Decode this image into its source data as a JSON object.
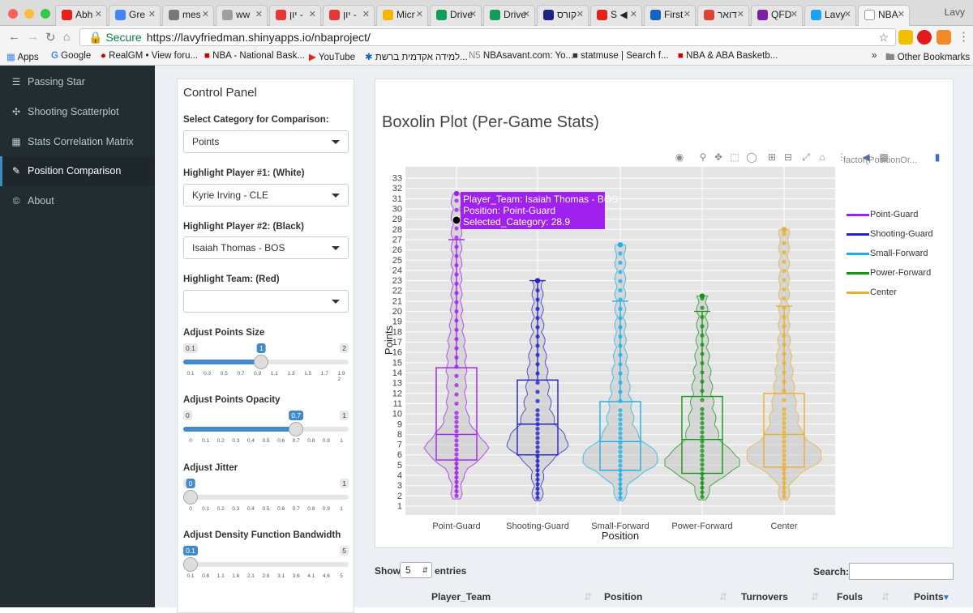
{
  "browser": {
    "tabs": [
      {
        "label": "Abh",
        "color": "#e62117"
      },
      {
        "label": "Gre",
        "color": "#4285f4"
      },
      {
        "label": "mes",
        "color": "#777777"
      },
      {
        "label": "ww",
        "color": "#9e9e9e"
      },
      {
        "label": "יון -",
        "color": "#e53935"
      },
      {
        "label": "יון -",
        "color": "#e53935"
      },
      {
        "label": "Micr",
        "color": "#f4b400"
      },
      {
        "label": "Drive",
        "color": "#0f9d58"
      },
      {
        "label": "Drive",
        "color": "#0f9d58"
      },
      {
        "label": "קורס",
        "color": "#1a237e"
      },
      {
        "label": "S ◀",
        "color": "#e62117"
      },
      {
        "label": "First",
        "color": "#1565c0"
      },
      {
        "label": "דואר",
        "color": "#db4437"
      },
      {
        "label": "QFD",
        "color": "#7b1fa2"
      },
      {
        "label": "Lavy",
        "color": "#1da1f2"
      },
      {
        "label": "NBA",
        "color": "#ffffff"
      }
    ],
    "user": "Lavy",
    "secure_label": "Secure",
    "url": "https://lavyfriedman.shinyapps.io/nbaproject/",
    "bookmarks": [
      "Apps",
      "Google",
      "RealGM • View foru...",
      "NBA - National Bask...",
      "YouTube",
      "למידה אקדמית ברשת...",
      "NBAsavant.com: Yo...",
      "statmuse | Search f...",
      "NBA & ABA Basketb..."
    ],
    "other_bookmarks": "Other Bookmarks",
    "overflow": "»"
  },
  "sidebar": {
    "items": [
      {
        "label": "Passing Star",
        "icon": "database-icon"
      },
      {
        "label": "Shooting Scatterplot",
        "icon": "crosshair-icon"
      },
      {
        "label": "Stats Correlation Matrix",
        "icon": "grid-icon"
      },
      {
        "label": "Position Comparison",
        "icon": "pencil-icon"
      },
      {
        "label": "About",
        "icon": "copyright-icon"
      }
    ]
  },
  "control_panel": {
    "title": "Control Panel",
    "category_label": "Select Category for Comparison:",
    "category_value": "Points",
    "player1_label": "Highlight Player #1: (White)",
    "player1_value": "Kyrie Irving - CLE",
    "player2_label": "Highlight Player #2: (Black)",
    "player2_value": "Isaiah Thomas - BOS",
    "team_label": "Highlight Team: (Red)",
    "team_value": "",
    "sliders": [
      {
        "label": "Adjust Points Size",
        "min": "0.1",
        "max": "2",
        "value": "1",
        "frac": 0.47,
        "ticks": [
          "0.1",
          "0.3",
          "0.5",
          "0.7",
          "0.9",
          "1.1",
          "1.3",
          "1.5",
          "1.7",
          "1.9 2"
        ]
      },
      {
        "label": "Adjust Points Opacity",
        "min": "0",
        "max": "1",
        "value": "0.7",
        "frac": 0.7,
        "ticks": [
          "0",
          "0.1",
          "0.2",
          "0.3",
          "0.4",
          "0.5",
          "0.6",
          "0.7",
          "0.8",
          "0.9",
          "1"
        ]
      },
      {
        "label": "Adjust Jitter",
        "min": "0",
        "max": "1",
        "value": "0",
        "frac": 0.0,
        "ticks": [
          "0",
          "0.1",
          "0.2",
          "0.3",
          "0.4",
          "0.5",
          "0.6",
          "0.7",
          "0.8",
          "0.9",
          "1"
        ]
      },
      {
        "label": "Adjust Density Function Bandwidth",
        "min": "0.1",
        "max": "5",
        "value": "0.1",
        "frac": 0.0,
        "ticks": [
          "0.1",
          "0.6",
          "1.1",
          "1.6",
          "2.1",
          "2.6",
          "3.1",
          "3.6",
          "4.1",
          "4.6",
          "5"
        ]
      }
    ]
  },
  "plot": {
    "title": "Boxolin Plot (Per-Game Stats)",
    "legend_title": "factor(PositionOr...",
    "tooltip": {
      "line1": "Player_Team: Isaiah Thomas - BOS",
      "line2": "Position: Point-Guard",
      "line3": "Selected_Category: 28.9"
    },
    "toolbar_icons": [
      "camera-icon",
      "zoom-icon",
      "pan-icon",
      "box-select-icon",
      "lasso-icon",
      "zoom-in-icon",
      "zoom-out-icon",
      "autoscale-icon",
      "reset-axes-icon",
      "spike-icon",
      "compare-hover-icon",
      "closest-hover-icon",
      "plotly-logo-icon"
    ]
  },
  "chart_data": {
    "type": "boxplot-violin",
    "title": "Boxolin Plot (Per-Game Stats)",
    "xlabel": "Position",
    "ylabel": "Points",
    "ylim": [
      1,
      33
    ],
    "y_ticks": [
      1,
      2,
      3,
      4,
      5,
      6,
      7,
      8,
      9,
      10,
      11,
      12,
      13,
      14,
      15,
      16,
      17,
      18,
      19,
      20,
      21,
      22,
      23,
      24,
      25,
      26,
      27,
      28,
      29,
      30,
      31,
      32,
      33
    ],
    "categories": [
      "Point-Guard",
      "Shooting-Guard",
      "Small-Forward",
      "Power-Forward",
      "Center"
    ],
    "series": [
      {
        "name": "Point-Guard",
        "color": "#a020f0",
        "q1": 5.5,
        "median": 8.0,
        "q3": 14.5,
        "whisker_low": 2.0,
        "whisker_high": 27.0,
        "max": 31.5
      },
      {
        "name": "Shooting-Guard",
        "color": "#2222cc",
        "q1": 6.0,
        "median": 9.0,
        "q3": 13.3,
        "whisker_low": 1.8,
        "whisker_high": 23.0,
        "max": 23.0
      },
      {
        "name": "Small-Forward",
        "color": "#1ab2e6",
        "q1": 4.5,
        "median": 7.3,
        "q3": 11.2,
        "whisker_low": 1.8,
        "whisker_high": 21.0,
        "max": 26.5
      },
      {
        "name": "Power-Forward",
        "color": "#149614",
        "q1": 4.2,
        "median": 7.5,
        "q3": 11.7,
        "whisker_low": 1.9,
        "whisker_high": 20.0,
        "max": 21.5
      },
      {
        "name": "Center",
        "color": "#e8b030",
        "q1": 4.8,
        "median": 8.0,
        "q3": 12.0,
        "whisker_low": 1.9,
        "whisker_high": 20.5,
        "max": 28.0
      }
    ],
    "legend_position": "right",
    "grid": true,
    "highlight": {
      "player": "Isaiah Thomas - BOS",
      "position": "Point-Guard",
      "value": 28.9
    }
  },
  "table": {
    "show_label": "Show",
    "entries_value": "5",
    "entries_label": "entries",
    "search_label": "Search:",
    "columns": [
      "Player_Team",
      "Position",
      "Turnovers",
      "Fouls",
      "Points"
    ]
  }
}
